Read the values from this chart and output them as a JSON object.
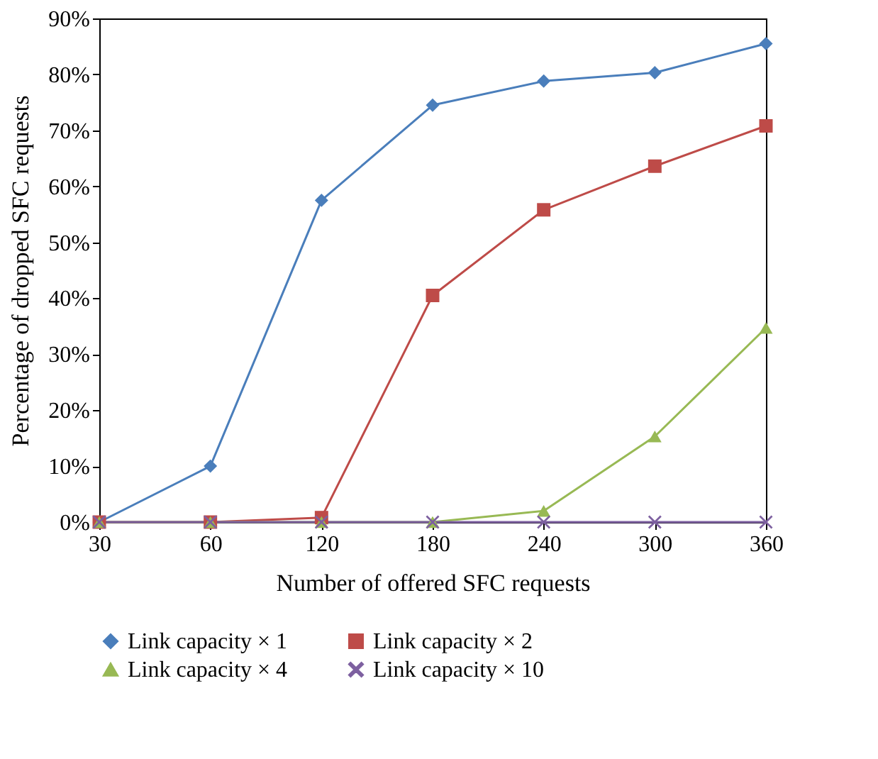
{
  "chart_data": {
    "type": "line",
    "xlabel": "Number of offered SFC requests",
    "ylabel": "Percentage of dropped SFC requests",
    "categories": [
      "30",
      "60",
      "120",
      "180",
      "240",
      "300",
      "360"
    ],
    "series": [
      {
        "name": "Link capacity × 1",
        "color": "#4a7ebb",
        "marker": "diamond",
        "values": [
          0,
          10,
          57.5,
          74.5,
          78.8,
          80.3,
          85.5
        ]
      },
      {
        "name": "Link capacity × 2",
        "color": "#be4b48",
        "marker": "square",
        "values": [
          0,
          0,
          0.8,
          40.5,
          55.8,
          63.6,
          70.8
        ]
      },
      {
        "name": "Link capacity × 4",
        "color": "#98b954",
        "marker": "triangle",
        "values": [
          0,
          0,
          0,
          0,
          2,
          15.3,
          34.7
        ]
      },
      {
        "name": "Link capacity × 10",
        "color": "#7d60a0",
        "marker": "cross",
        "values": [
          0,
          0,
          0,
          0,
          0,
          0,
          0
        ]
      }
    ],
    "ylim": [
      0,
      90
    ],
    "yticks": [
      {
        "value": 0,
        "label": "0%"
      },
      {
        "value": 10,
        "label": "10%"
      },
      {
        "value": 20,
        "label": "20%"
      },
      {
        "value": 30,
        "label": "30%"
      },
      {
        "value": 40,
        "label": "40%"
      },
      {
        "value": 50,
        "label": "50%"
      },
      {
        "value": 60,
        "label": "60%"
      },
      {
        "value": 70,
        "label": "70%"
      },
      {
        "value": 80,
        "label": "80%"
      },
      {
        "value": 90,
        "label": "90%"
      }
    ],
    "grid": false,
    "legend": "bottom",
    "line_style": "solid"
  }
}
